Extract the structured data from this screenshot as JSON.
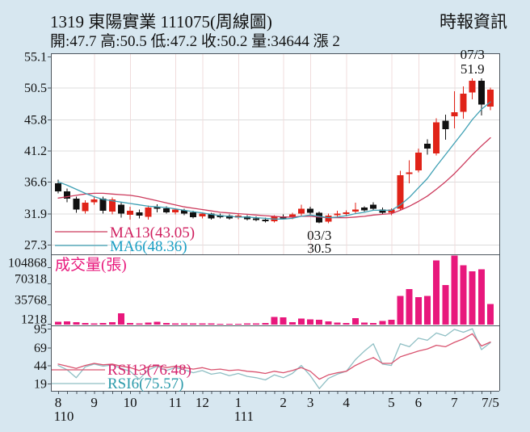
{
  "header": {
    "stock_id_title": "1319  東陽實業 111075(周線圖)",
    "source": "時報資訊",
    "quote_line": "開:47.7 高:50.5 低:47.2 收:50.2 量:34644 漲 2"
  },
  "colors": {
    "background": "#d7e7f0",
    "panel": "#ffffff",
    "border": "#4d565e",
    "grid": "#dcdcdc",
    "month_grid": "#f0dcdc",
    "text": "#111111",
    "up": "#e02318",
    "down": "#111111",
    "ma13": "#cc3a5c",
    "ma13_text": "#d01f5f",
    "ma6": "#3fa0b4",
    "ma6_text": "#1a9fc4",
    "volume": "#e8187c",
    "rsi13": "#d9536f",
    "rsi13_text": "#d6246e",
    "rsi6": "#8fbfc4",
    "rsi6_text": "#2b9aaa"
  },
  "xaxis": {
    "month_ticks": [
      {
        "week": 0,
        "label": "8"
      },
      {
        "week": 4,
        "label": "9"
      },
      {
        "week": 8,
        "label": "10"
      },
      {
        "week": 13,
        "label": "11"
      },
      {
        "week": 16,
        "label": "12"
      },
      {
        "week": 20,
        "label": "1"
      },
      {
        "week": 25,
        "label": "2"
      },
      {
        "week": 28,
        "label": "3"
      },
      {
        "week": 32,
        "label": "4"
      },
      {
        "week": 37,
        "label": "5"
      },
      {
        "week": 40,
        "label": "6"
      },
      {
        "week": 44,
        "label": "7"
      },
      {
        "week": 48,
        "label": "7/5"
      }
    ],
    "year_labels": [
      {
        "week": 0,
        "label": "110"
      },
      {
        "week": 20,
        "label": "111"
      }
    ]
  },
  "chart_data": [
    {
      "type": "candlestick",
      "ylabels": [
        "55.1",
        "50.5",
        "45.8",
        "41.2",
        "36.6",
        "31.9",
        "27.3"
      ],
      "ylim": [
        25.9,
        55.6
      ],
      "legend": [
        {
          "label": "MA13(43.05)",
          "series": "ma13"
        },
        {
          "label": "MA6(48.36)",
          "series": "ma6"
        }
      ],
      "annotations": [
        {
          "week": 46,
          "lines": [
            "07/3",
            "51.9"
          ],
          "placement": "above"
        },
        {
          "week": 29,
          "lines": [
            "03/3",
            "30.5"
          ],
          "placement": "below"
        }
      ],
      "candles_ohlc": [
        [
          36.4,
          36.9,
          34.9,
          35.2
        ],
        [
          35.2,
          35.6,
          33.6,
          34.1
        ],
        [
          34.1,
          34.4,
          32.0,
          32.5
        ],
        [
          32.3,
          33.9,
          31.9,
          33.5
        ],
        [
          33.6,
          34.4,
          33.2,
          34.0
        ],
        [
          34.1,
          34.4,
          31.9,
          32.3
        ],
        [
          32.2,
          34.3,
          31.8,
          34.0
        ],
        [
          33.2,
          33.5,
          31.3,
          31.9
        ],
        [
          31.7,
          32.9,
          31.0,
          32.3
        ],
        [
          32.1,
          32.5,
          31.2,
          31.6
        ],
        [
          31.4,
          33.1,
          31.0,
          32.8
        ],
        [
          32.9,
          33.3,
          32.1,
          32.6
        ],
        [
          32.7,
          33.0,
          31.9,
          32.1
        ],
        [
          32.1,
          32.7,
          31.8,
          32.5
        ],
        [
          32.4,
          32.6,
          31.7,
          31.9
        ],
        [
          32.1,
          32.3,
          31.2,
          31.4
        ],
        [
          31.5,
          32.1,
          31.2,
          31.9
        ],
        [
          31.9,
          32.0,
          31.0,
          31.2
        ],
        [
          31.7,
          31.9,
          31.2,
          31.4
        ],
        [
          31.6,
          31.8,
          31.0,
          31.2
        ],
        [
          31.3,
          31.9,
          31.1,
          31.6
        ],
        [
          31.5,
          31.7,
          30.9,
          31.1
        ],
        [
          31.2,
          31.5,
          30.8,
          31.0
        ],
        [
          31.0,
          31.3,
          30.6,
          30.8
        ],
        [
          30.8,
          31.7,
          30.6,
          31.5
        ],
        [
          31.5,
          31.8,
          31.0,
          31.2
        ],
        [
          31.3,
          32.0,
          31.1,
          31.8
        ],
        [
          31.9,
          33.2,
          31.5,
          32.6
        ],
        [
          32.6,
          32.9,
          31.8,
          32.0
        ],
        [
          32.0,
          32.2,
          30.5,
          30.6
        ],
        [
          30.7,
          31.9,
          30.5,
          31.6
        ],
        [
          31.7,
          32.3,
          31.3,
          31.9
        ],
        [
          31.9,
          32.4,
          31.5,
          32.1
        ],
        [
          32.2,
          33.5,
          31.9,
          32.5
        ],
        [
          32.8,
          33.0,
          32.2,
          32.4
        ],
        [
          33.2,
          33.6,
          32.4,
          32.6
        ],
        [
          32.5,
          32.8,
          31.8,
          32.0
        ],
        [
          32.0,
          32.7,
          31.7,
          32.5
        ],
        [
          32.6,
          38.2,
          32.4,
          37.6
        ],
        [
          37.9,
          39.8,
          36.4,
          38.0
        ],
        [
          38.3,
          41.5,
          38.0,
          40.9
        ],
        [
          42.2,
          42.9,
          40.6,
          41.5
        ],
        [
          40.8,
          46.0,
          40.5,
          45.4
        ],
        [
          45.6,
          46.5,
          42.8,
          44.4
        ],
        [
          46.3,
          50.0,
          44.5,
          46.9
        ],
        [
          46.9,
          50.7,
          45.9,
          49.6
        ],
        [
          49.8,
          51.9,
          48.8,
          51.5
        ],
        [
          51.5,
          51.9,
          46.4,
          48.0
        ],
        [
          47.7,
          50.5,
          47.2,
          50.2
        ]
      ],
      "ma6": [
        36.6,
        36.1,
        35.5,
        34.9,
        34.4,
        34.0,
        33.8,
        33.6,
        33.4,
        33.2,
        33.0,
        32.9,
        32.8,
        32.6,
        32.4,
        32.2,
        32.0,
        31.8,
        31.6,
        31.5,
        31.4,
        31.4,
        31.3,
        31.2,
        31.1,
        31.1,
        31.2,
        31.5,
        31.7,
        31.5,
        31.3,
        31.4,
        31.6,
        31.9,
        32.1,
        32.4,
        32.4,
        32.4,
        33.2,
        34.3,
        35.7,
        37.1,
        38.9,
        40.6,
        42.3,
        44.0,
        45.8,
        47.3,
        48.4
      ],
      "ma13": [
        34.2,
        34.4,
        34.6,
        34.8,
        34.9,
        34.9,
        34.8,
        34.7,
        34.6,
        34.4,
        34.1,
        33.8,
        33.5,
        33.2,
        32.9,
        32.7,
        32.5,
        32.3,
        32.1,
        32.0,
        31.9,
        31.8,
        31.7,
        31.6,
        31.5,
        31.4,
        31.4,
        31.5,
        31.5,
        31.4,
        31.3,
        31.3,
        31.3,
        31.4,
        31.5,
        31.7,
        31.8,
        31.9,
        32.4,
        33.0,
        33.7,
        34.5,
        35.5,
        36.6,
        37.8,
        39.2,
        40.6,
        41.9,
        43.1
      ]
    },
    {
      "type": "bar",
      "title": "成交量(張)",
      "ylabels": [
        "104868",
        "70318",
        "35768",
        "1218"
      ],
      "ylabel_values": [
        104868,
        70318,
        35768,
        1218
      ],
      "values": [
        4500,
        5500,
        4200,
        2800,
        2200,
        2600,
        3800,
        19000,
        2400,
        2100,
        3400,
        4800,
        2600,
        2200,
        1900,
        1700,
        2100,
        1800,
        1500,
        1600,
        1400,
        1800,
        2200,
        2600,
        13000,
        12000,
        4200,
        10000,
        8500,
        7800,
        5200,
        3600,
        2800,
        11000,
        3200,
        2600,
        5800,
        8200,
        48000,
        59000,
        46000,
        48000,
        107000,
        66000,
        115000,
        99000,
        89000,
        92000,
        34644
      ]
    },
    {
      "type": "line",
      "ylabels": [
        "95",
        "69",
        "44",
        "19"
      ],
      "ylabel_values": [
        95,
        69,
        44,
        19
      ],
      "legend": [
        {
          "label": "RSI13(76.48)",
          "series": "rsi13"
        },
        {
          "label": "RSI6(75.57)",
          "series": "rsi6"
        }
      ],
      "rsi13": [
        46,
        43,
        40,
        44,
        47,
        45,
        46,
        43,
        41,
        37,
        42,
        44,
        41,
        43,
        41,
        39,
        41,
        38,
        39,
        37,
        38,
        36,
        35,
        33,
        36,
        34,
        37,
        41,
        36,
        25,
        31,
        34,
        36,
        44,
        50,
        55,
        47,
        47,
        56,
        60,
        64,
        67,
        72,
        70,
        76,
        81,
        88,
        71,
        76.5
      ],
      "rsi6": [
        44,
        38,
        27,
        42,
        46,
        43,
        45,
        40,
        36,
        25,
        38,
        43,
        37,
        41,
        38,
        34,
        37,
        32,
        34,
        30,
        33,
        29,
        27,
        24,
        31,
        27,
        33,
        44,
        30,
        12,
        26,
        32,
        36,
        52,
        64,
        74,
        46,
        44,
        74,
        70,
        82,
        79,
        89,
        85,
        94,
        90,
        95,
        66,
        75.6
      ]
    }
  ]
}
